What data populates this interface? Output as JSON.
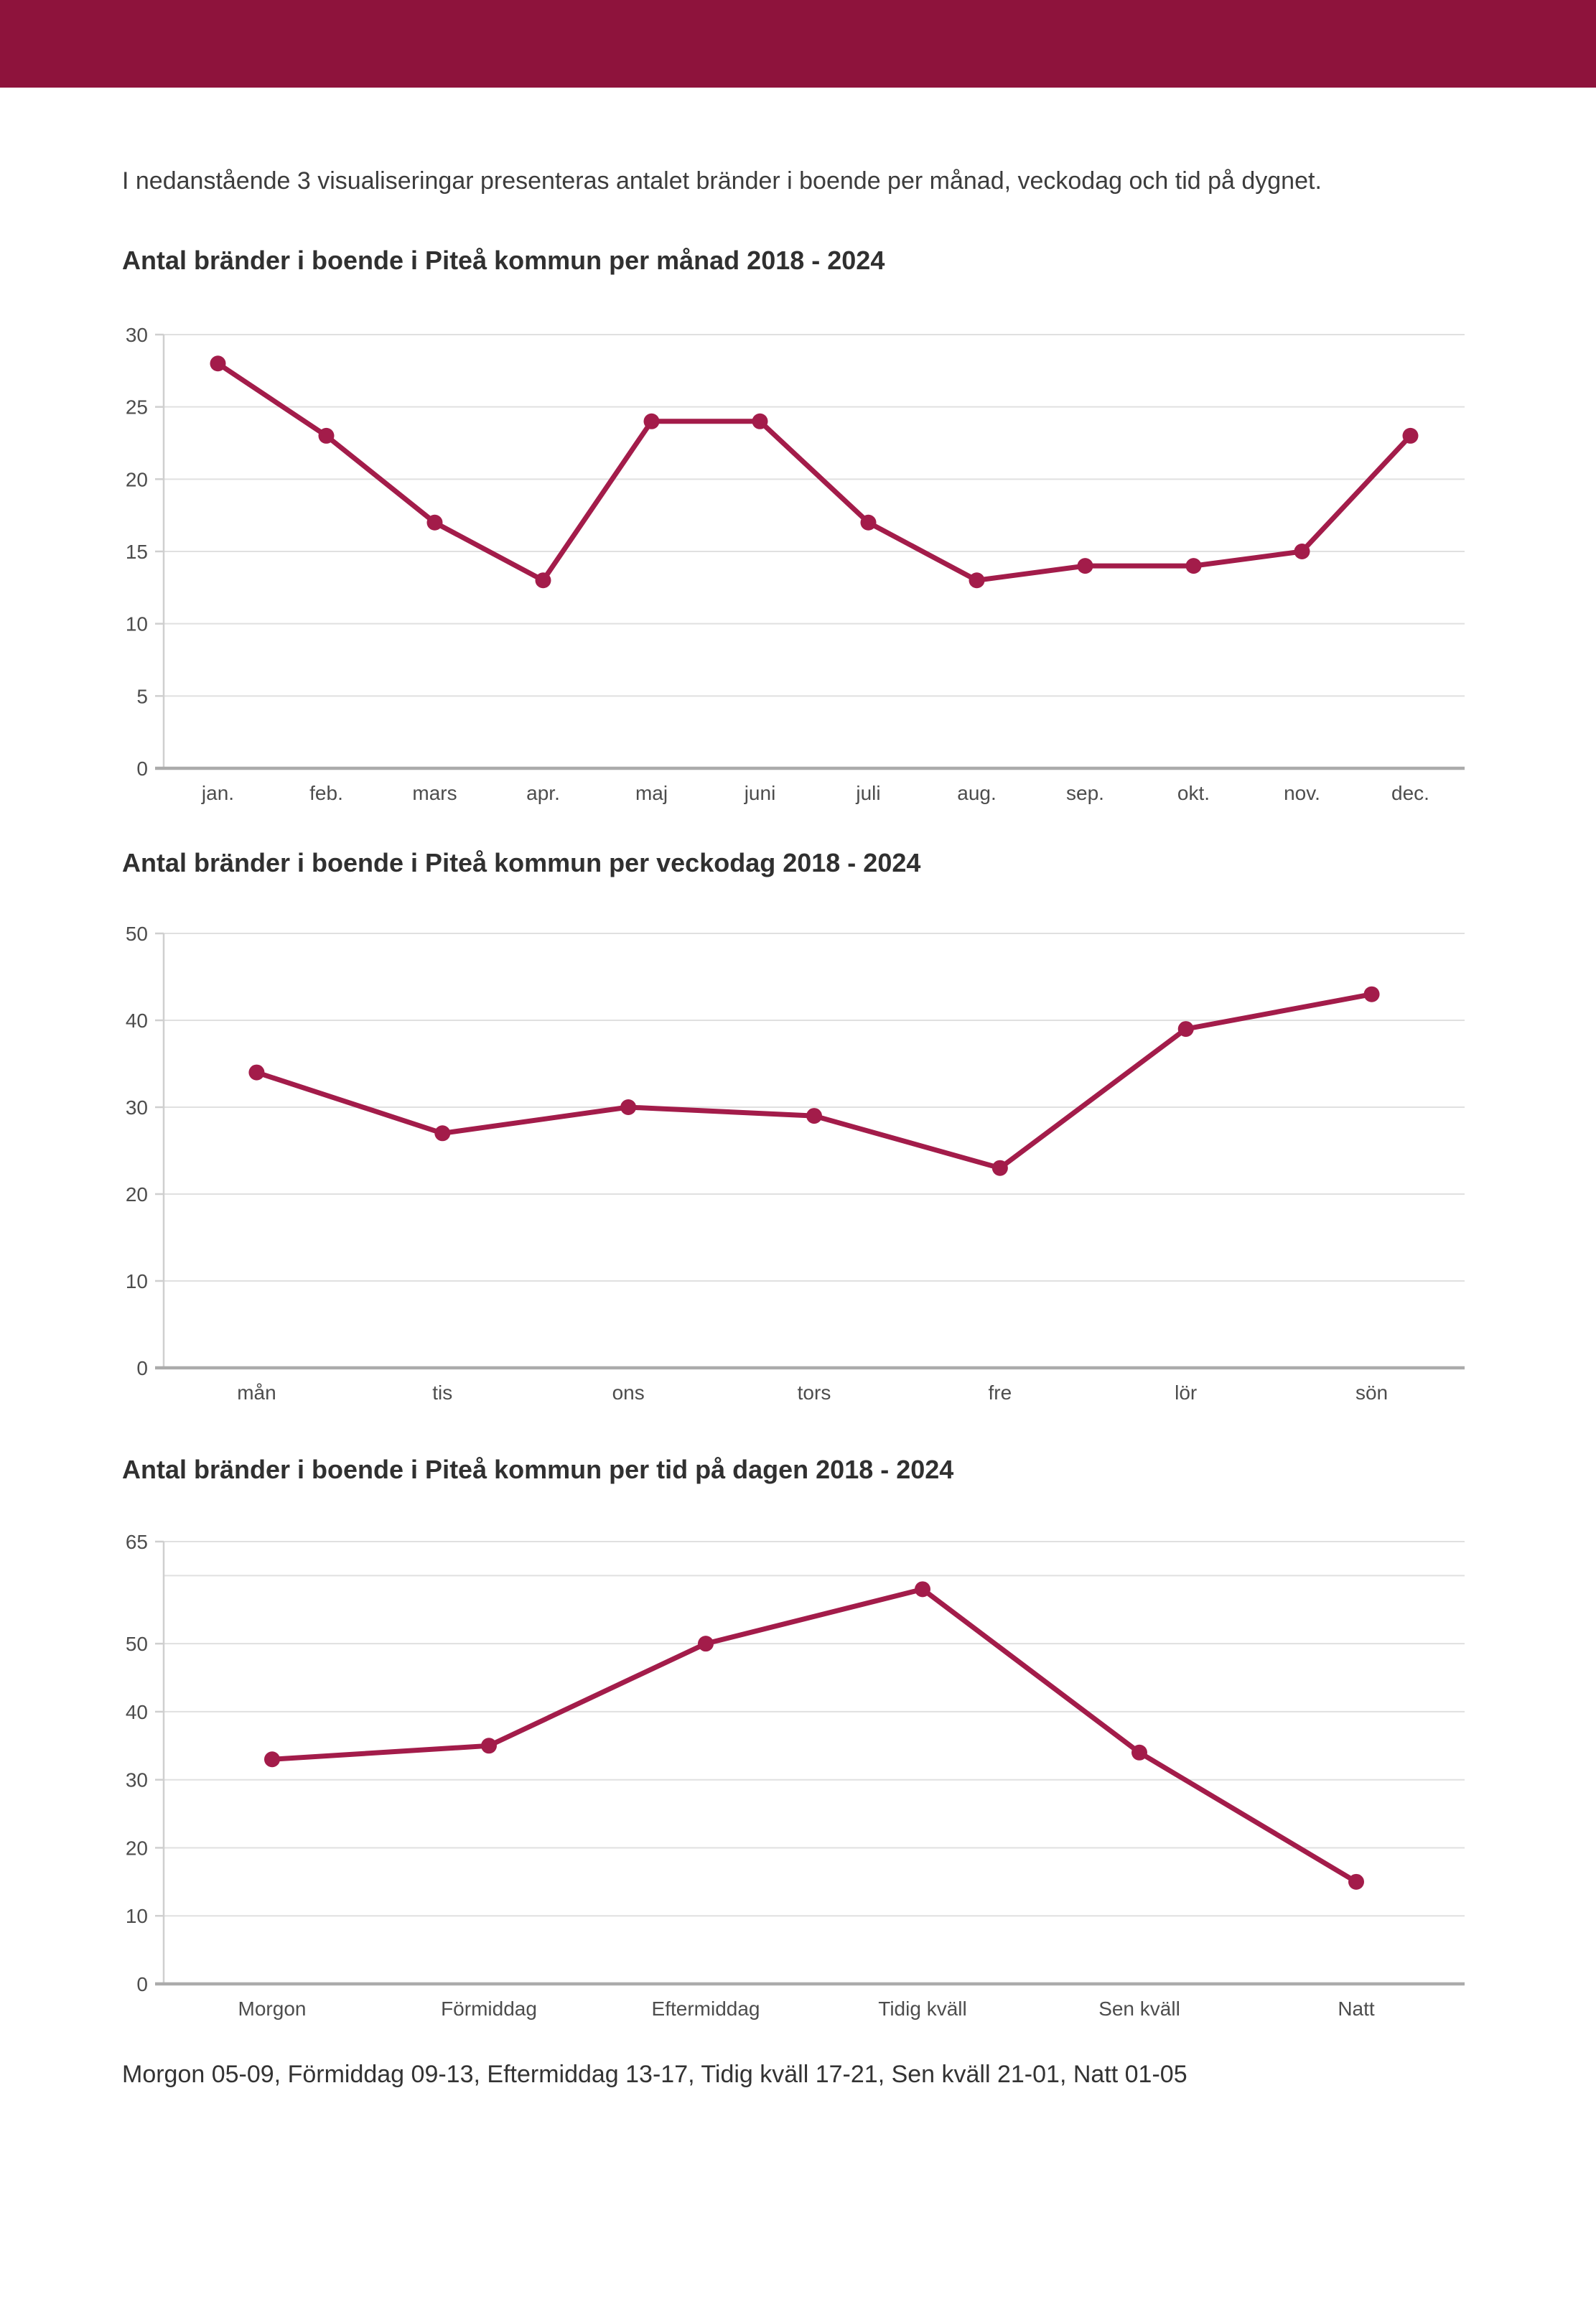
{
  "intro": "I nedanstående 3 visualiseringar presenteras antalet bränder i boende per månad, veckodag och tid på dygnet.",
  "footnote": "Morgon 05-09, Förmiddag 09-13, Eftermiddag 13-17, Tidig kväll 17-21, Sen kväll 21-01, Natt 01-05",
  "colors": {
    "header_bar": "#8E133C",
    "line": "#A31C4A",
    "point": "#A31C4A",
    "gridline": "#e0e0e0",
    "axis": "#cfcfcf",
    "baseline": "#ababab",
    "tick_label": "#4d4d4d",
    "category_label": "#4d4d4d"
  },
  "chart_data": [
    {
      "type": "line",
      "title": "Antal bränder i boende i Piteå kommun per månad 2018 - 2024",
      "categories": [
        "jan.",
        "feb.",
        "mars",
        "apr.",
        "maj",
        "juni",
        "juli",
        "aug.",
        "sep.",
        "okt.",
        "nov.",
        "dec."
      ],
      "values": [
        28,
        23,
        17,
        13,
        24,
        24,
        17,
        13,
        14,
        14,
        15,
        23
      ],
      "xlabel": "",
      "ylabel": "",
      "ylim": [
        0,
        30
      ],
      "y_ticks": [
        0,
        5,
        10,
        15,
        20,
        25,
        30
      ],
      "minor_gridlines": [],
      "grid": true,
      "legend": "none"
    },
    {
      "type": "line",
      "title": "Antal bränder i boende i Piteå kommun per veckodag 2018 - 2024",
      "categories": [
        "mån",
        "tis",
        "ons",
        "tors",
        "fre",
        "lör",
        "sön"
      ],
      "values": [
        34,
        27,
        30,
        29,
        23,
        39,
        43
      ],
      "xlabel": "",
      "ylabel": "",
      "ylim": [
        0,
        50
      ],
      "y_ticks": [
        0,
        10,
        20,
        30,
        40,
        50
      ],
      "minor_gridlines": [],
      "grid": true,
      "legend": "none"
    },
    {
      "type": "line",
      "title": "Antal bränder i boende i Piteå kommun per tid på dagen 2018 - 2024",
      "categories": [
        "Morgon",
        "Förmiddag",
        "Eftermiddag",
        "Tidig kväll",
        "Sen kväll",
        "Natt"
      ],
      "values": [
        33,
        35,
        50,
        58,
        34,
        15
      ],
      "xlabel": "",
      "ylabel": "",
      "ylim": [
        0,
        65
      ],
      "y_ticks": [
        0,
        10,
        20,
        30,
        40,
        50,
        65
      ],
      "minor_gridlines": [
        60
      ],
      "grid": true,
      "legend": "none"
    }
  ]
}
